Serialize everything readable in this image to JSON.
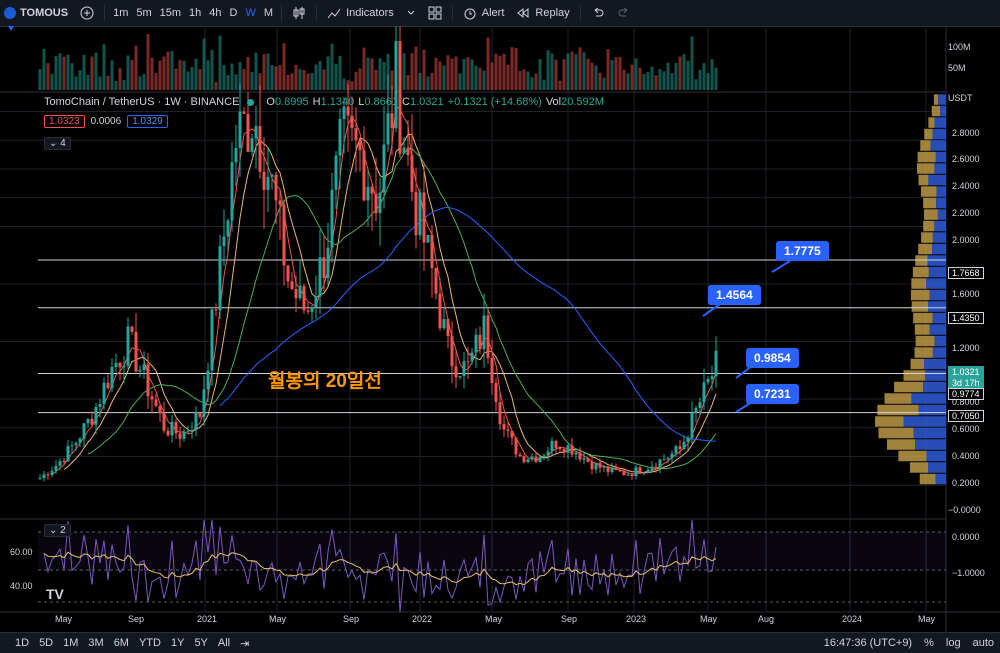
{
  "toolbar": {
    "symbol": "TOMOUS",
    "timeframes": [
      "1m",
      "5m",
      "15m",
      "1h",
      "4h",
      "D",
      "W",
      "M"
    ],
    "active_timeframe": "W",
    "indicators_label": "Indicators",
    "alert_label": "Alert",
    "replay_label": "Replay"
  },
  "legend": {
    "title": "TomoChain / TetherUS · 1W · BINANCE",
    "open_label": "O",
    "open": "0.8995",
    "high_label": "H",
    "high": "1.1340",
    "low_label": "L",
    "low": "0.8661",
    "close_label": "C",
    "close": "1.0321",
    "change": "+0.1321 (+14.68%)",
    "vol_label": "Vol",
    "vol": "20.592M",
    "ma1": "1.0323",
    "ma2": "0.0006",
    "ma3": "1.0329",
    "pane_count": "4",
    "rsi_pane_count": "2"
  },
  "annotation": "월봉의 20일선",
  "callouts": [
    "1.7775",
    "1.4564",
    "0.9854",
    "0.7231"
  ],
  "price_scale": {
    "currency": "USDT",
    "labels": [
      "2.8000",
      "2.6000",
      "2.4000",
      "2.2000",
      "2.0000",
      "1.6000",
      "1.2000",
      "0.8000",
      "0.6000",
      "0.4000",
      "0.2000",
      "−0.0000"
    ],
    "tags": [
      "1.7668",
      "1.4350",
      "1.0321",
      "3d 17h",
      "0.9774",
      "0.7050"
    ],
    "volume_labels": [
      "100M",
      "50M"
    ],
    "rsi_labels": [
      "0.0000",
      "−1.0000"
    ],
    "rsi_left_labels": [
      "60.00",
      "40.00"
    ]
  },
  "time_axis": [
    "May",
    "Sep",
    "2021",
    "May",
    "Sep",
    "2022",
    "May",
    "Sep",
    "2023",
    "May",
    "Aug",
    "2024",
    "May"
  ],
  "bottom": {
    "ranges": [
      "1D",
      "5D",
      "1M",
      "3M",
      "6M",
      "YTD",
      "1Y",
      "5Y",
      "All"
    ],
    "clock": "16:47:36 (UTC+9)",
    "percent": "%",
    "log": "log",
    "auto": "auto"
  },
  "colors": {
    "up": "#26a69a",
    "down": "#ef5350",
    "accent": "#2962ff",
    "ma_orange": "#e9b96e",
    "ma_red": "#ef5350",
    "ma_green": "#4caf50",
    "ma_blue": "#2962ff",
    "annotation": "#ff9800"
  },
  "chart_data": {
    "type": "candlestick",
    "x": [
      "2020-03",
      "2020-04",
      "2020-05",
      "2020-06",
      "2020-07",
      "2020-08",
      "2020-09",
      "2020-10",
      "2020-11",
      "2020-12",
      "2021-01",
      "2021-02",
      "2021-03",
      "2021-04",
      "2021-05",
      "2021-06",
      "2021-07",
      "2021-08",
      "2021-09",
      "2021-10",
      "2021-11",
      "2021-12",
      "2022-01",
      "2022-02",
      "2022-03",
      "2022-04",
      "2022-05",
      "2022-06",
      "2022-07",
      "2022-08",
      "2022-09",
      "2022-10",
      "2022-11",
      "2022-12",
      "2023-01",
      "2023-02",
      "2023-03",
      "2023-04",
      "2023-05"
    ],
    "close": [
      0.25,
      0.35,
      0.5,
      0.7,
      1.0,
      1.2,
      0.9,
      0.6,
      0.55,
      0.7,
      1.6,
      2.6,
      2.8,
      2.3,
      1.6,
      1.4,
      1.8,
      2.6,
      2.5,
      2.2,
      3.0,
      2.2,
      1.7,
      1.1,
      1.0,
      1.3,
      0.6,
      0.4,
      0.4,
      0.5,
      0.45,
      0.35,
      0.3,
      0.28,
      0.32,
      0.38,
      0.45,
      0.75,
      1.03
    ],
    "horizontal_levels": [
      1.7775,
      1.4564,
      0.9854,
      0.7231
    ],
    "ylim": [
      0.0,
      3.0
    ]
  }
}
